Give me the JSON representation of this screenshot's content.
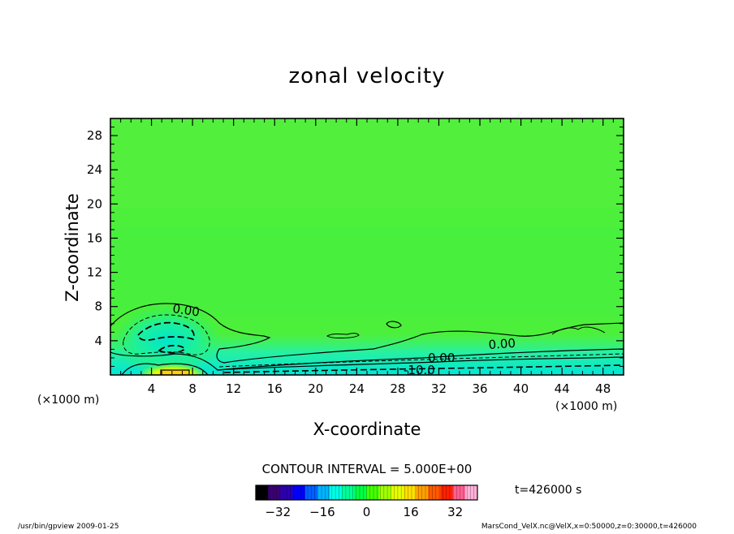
{
  "chart_data": {
    "type": "heatmap",
    "title": "zonal velocity",
    "xlabel": "X-coordinate",
    "ylabel": "Z-coordinate",
    "x_unit": "(×1000 m)",
    "y_unit": "(×1000 m)",
    "xlim": [
      0,
      50
    ],
    "ylim": [
      0,
      30
    ],
    "x_ticks": [
      4,
      8,
      12,
      16,
      20,
      24,
      28,
      32,
      36,
      40,
      44,
      48
    ],
    "y_ticks": [
      4,
      8,
      12,
      16,
      20,
      24,
      28
    ],
    "contour_labels": [
      "0.00",
      "0.00",
      "0.00",
      "-10.0"
    ],
    "contour_interval_text": "CONTOUR INTERVAL = 5.000E+00",
    "time_text": "t=426000 s",
    "colorbar": {
      "min": -40,
      "max": 40,
      "ticks": [
        -32,
        -16,
        0,
        16,
        32
      ],
      "colors": [
        "#000000",
        "#3b0073",
        "#2b00b0",
        "#0000ff",
        "#0060ff",
        "#00b4ff",
        "#00ffe6",
        "#00ff9a",
        "#00ff44",
        "#44ff00",
        "#a0ff00",
        "#e6ff00",
        "#ffe000",
        "#ffa000",
        "#ff5a00",
        "#ff2000",
        "#ff6090",
        "#ffb0d8"
      ]
    },
    "grid": false
  },
  "footer": {
    "left": "/usr/bin/gpview   2009-01-25",
    "right": "MarsCond_VelX.nc@VelX,x=0:50000,z=0:30000,t=426000"
  }
}
